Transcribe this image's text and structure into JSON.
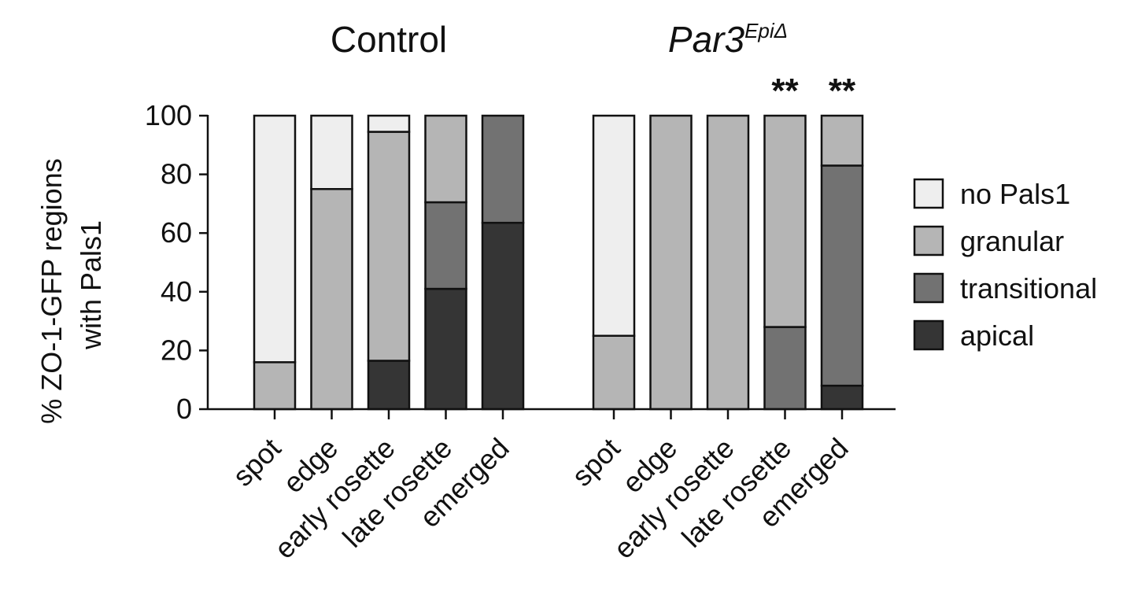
{
  "chart_data": {
    "type": "stacked-bar",
    "ylabel_line1": "% ZO-1-GFP regions",
    "ylabel_line2": "with Pals1",
    "ylim": [
      0,
      100
    ],
    "yticks": [
      "0",
      "20",
      "40",
      "60",
      "80",
      "100"
    ],
    "series": [
      {
        "name": "apical",
        "color": "#353535"
      },
      {
        "name": "transitional",
        "color": "#727272"
      },
      {
        "name": "granular",
        "color": "#b5b5b5"
      },
      {
        "name": "no Pals1",
        "color": "#eeeeee"
      }
    ],
    "legend": [
      "no Pals1",
      "granular",
      "transitional",
      "apical"
    ],
    "groups": [
      {
        "title": "Control",
        "title_sup": "",
        "bars": [
          {
            "label": "spot",
            "values": {
              "apical": 0,
              "transitional": 0,
              "granular": 16,
              "no Pals1": 84
            },
            "significance": ""
          },
          {
            "label": "edge",
            "values": {
              "apical": 0,
              "transitional": 0,
              "granular": 75,
              "no Pals1": 25
            },
            "significance": ""
          },
          {
            "label": "early rosette",
            "values": {
              "apical": 16.5,
              "transitional": 0,
              "granular": 78,
              "no Pals1": 5.5
            },
            "significance": ""
          },
          {
            "label": "late rosette",
            "values": {
              "apical": 41,
              "transitional": 29.5,
              "granular": 29.5,
              "no Pals1": 0
            },
            "significance": ""
          },
          {
            "label": "emerged",
            "values": {
              "apical": 63.5,
              "transitional": 36.5,
              "granular": 0,
              "no Pals1": 0
            },
            "significance": ""
          }
        ]
      },
      {
        "title": "Par3",
        "title_sup": "EpiΔ",
        "bars": [
          {
            "label": "spot",
            "values": {
              "apical": 0,
              "transitional": 0,
              "granular": 25,
              "no Pals1": 75
            },
            "significance": ""
          },
          {
            "label": "edge",
            "values": {
              "apical": 0,
              "transitional": 0,
              "granular": 100,
              "no Pals1": 0
            },
            "significance": ""
          },
          {
            "label": "early rosette",
            "values": {
              "apical": 0,
              "transitional": 0,
              "granular": 100,
              "no Pals1": 0
            },
            "significance": ""
          },
          {
            "label": "late rosette",
            "values": {
              "apical": 0,
              "transitional": 28,
              "granular": 72,
              "no Pals1": 0
            },
            "significance": "**"
          },
          {
            "label": "emerged",
            "values": {
              "apical": 8,
              "transitional": 75,
              "granular": 17,
              "no Pals1": 0
            },
            "significance": "**"
          }
        ]
      }
    ]
  }
}
